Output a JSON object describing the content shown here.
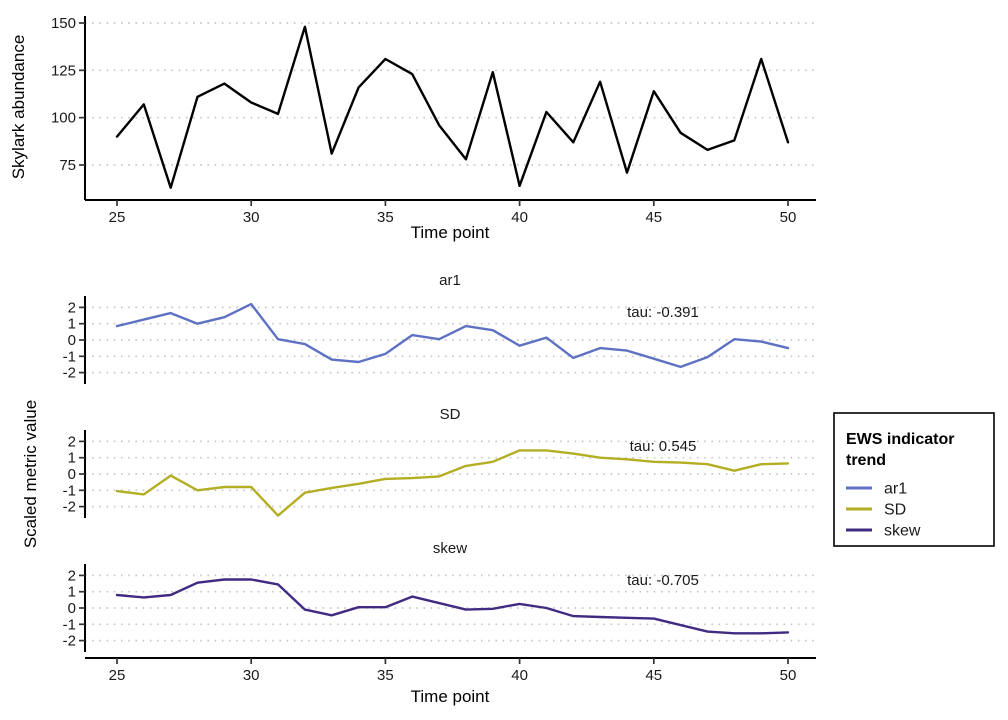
{
  "legend": {
    "title_lines": [
      "EWS indicator",
      "trend"
    ],
    "entries": [
      {
        "label": "ar1",
        "color": "#5e71c3"
      },
      {
        "label": "SD",
        "color": "#b3ae24"
      },
      {
        "label": "skew",
        "color": "#412a82"
      }
    ]
  },
  "chart_data": [
    {
      "type": "line",
      "title": "",
      "xlabel": "Time point",
      "ylabel": "Skylark abundance",
      "x": [
        25,
        26,
        27,
        28,
        29,
        30,
        31,
        32,
        33,
        34,
        35,
        36,
        37,
        38,
        39,
        40,
        41,
        42,
        43,
        44,
        45,
        46,
        47,
        48,
        49,
        50
      ],
      "x_ticks": [
        25,
        30,
        35,
        40,
        45,
        50
      ],
      "y_ticks": [
        75,
        100,
        125,
        150
      ],
      "xlim": [
        23.8,
        51.1
      ],
      "ylim": [
        57,
        155
      ],
      "grid": "horizontal-dotted",
      "legend_position": "none",
      "series": [
        {
          "name": "Skylark abundance",
          "color": "#000000",
          "values": [
            90,
            107,
            63,
            111,
            118,
            108,
            102,
            148,
            81,
            116,
            131,
            123,
            96,
            78,
            124,
            64,
            103,
            87,
            119,
            71,
            114,
            92,
            83,
            88,
            131,
            87
          ]
        }
      ]
    },
    {
      "type": "line",
      "layout": "three stacked facets sharing x axis",
      "xlabel": "Time point",
      "ylabel": "Scaled metric value",
      "x": [
        25,
        26,
        27,
        28,
        29,
        30,
        31,
        32,
        33,
        34,
        35,
        36,
        37,
        38,
        39,
        40,
        41,
        42,
        43,
        44,
        45,
        46,
        47,
        48,
        49,
        50
      ],
      "x_ticks": [
        25,
        30,
        35,
        40,
        45,
        50
      ],
      "y_ticks": [
        2,
        1,
        0,
        -1,
        -2
      ],
      "xlim": [
        23.8,
        51.1
      ],
      "ylim": [
        -2.7,
        2.7
      ],
      "grid": "horizontal-dotted",
      "legend_position": "right",
      "facets": [
        {
          "label": "ar1",
          "annotation": "tau: -0.391",
          "color": "#5e71c3",
          "values": [
            0.85,
            1.25,
            1.65,
            1.0,
            1.4,
            2.2,
            0.05,
            -0.25,
            -1.2,
            -1.35,
            -0.85,
            0.3,
            0.05,
            0.85,
            0.6,
            -0.35,
            0.15,
            -1.1,
            -0.5,
            -0.65,
            -1.15,
            -1.65,
            -1.05,
            0.05,
            -0.1,
            -0.5
          ]
        },
        {
          "label": "SD",
          "annotation": "tau: 0.545",
          "color": "#b3ae24",
          "values": [
            -1.05,
            -1.25,
            -0.1,
            -1.0,
            -0.8,
            -0.8,
            -2.55,
            -1.15,
            -0.85,
            -0.6,
            -0.3,
            -0.25,
            -0.15,
            0.5,
            0.75,
            1.45,
            1.45,
            1.25,
            1.0,
            0.9,
            0.75,
            0.7,
            0.6,
            0.2,
            0.6,
            0.65
          ]
        },
        {
          "label": "skew",
          "annotation": "tau: -0.705",
          "color": "#412a82",
          "values": [
            0.8,
            0.65,
            0.8,
            1.55,
            1.75,
            1.75,
            1.45,
            -0.1,
            -0.45,
            0.05,
            0.05,
            0.7,
            0.3,
            -0.1,
            -0.05,
            0.25,
            0.0,
            -0.5,
            -0.55,
            -0.6,
            -0.65,
            -1.05,
            -1.45,
            -1.55,
            -1.55,
            -1.5
          ]
        }
      ]
    }
  ]
}
